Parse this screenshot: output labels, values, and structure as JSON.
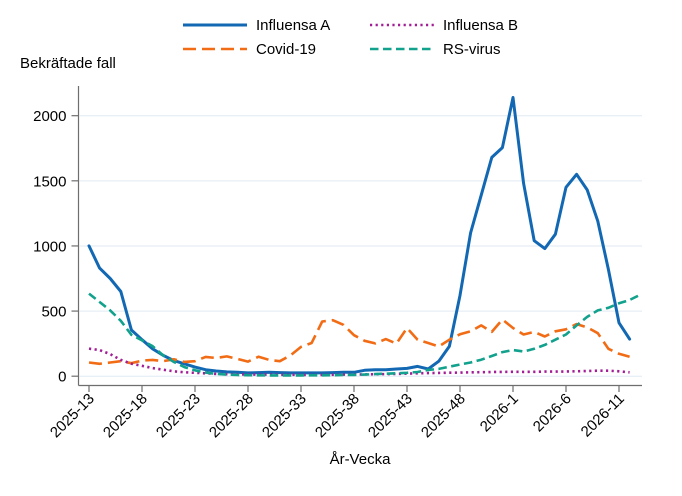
{
  "figure": {
    "y_axis_title": "Bekräftade fall",
    "x_axis_title": "År-Vecka"
  },
  "legend": {
    "position": "top-center",
    "items": [
      "Influensa A",
      "Covid-19",
      "Influensa B",
      "RS-virus"
    ]
  },
  "colors": {
    "influensa_a": "#1268b3",
    "covid_19": "#f26c15",
    "influensa_b": "#a21d96",
    "rs_virus": "#11a18c",
    "gridline": "#e0eaf2",
    "axis": "#6e6e6e",
    "text": "#000000"
  },
  "chart_data": {
    "type": "line",
    "title": "",
    "xlabel": "År-Vecka",
    "ylabel": "Bekräftade fall",
    "ylim": [
      0,
      2200
    ],
    "y_ticks": [
      0,
      500,
      1000,
      1500,
      2000
    ],
    "grid": true,
    "legend_position": "top-center",
    "x_tick_labels": [
      "2025-13",
      "2025-18",
      "2025-23",
      "2025-28",
      "2025-33",
      "2025-38",
      "2025-43",
      "2025-48",
      "2026-1",
      "2026-6",
      "2026-11"
    ],
    "x": [
      "2025-13",
      "2025-14",
      "2025-15",
      "2025-16",
      "2025-17",
      "2025-18",
      "2025-19",
      "2025-20",
      "2025-21",
      "2025-22",
      "2025-23",
      "2025-24",
      "2025-25",
      "2025-26",
      "2025-27",
      "2025-28",
      "2025-29",
      "2025-30",
      "2025-31",
      "2025-32",
      "2025-33",
      "2025-34",
      "2025-35",
      "2025-36",
      "2025-37",
      "2025-38",
      "2025-39",
      "2025-40",
      "2025-41",
      "2025-42",
      "2025-43",
      "2025-44",
      "2025-45",
      "2025-46",
      "2025-47",
      "2025-48",
      "2025-49",
      "2025-50",
      "2025-51",
      "2025-52",
      "2026-1",
      "2026-2",
      "2026-3",
      "2026-4",
      "2026-5",
      "2026-6",
      "2026-7",
      "2026-8",
      "2026-9",
      "2026-10",
      "2026-11",
      "2026-12",
      "2026-13"
    ],
    "series": [
      {
        "name": "Influensa A",
        "color": "#1268b3",
        "dash": "solid",
        "width": 3,
        "values": [
          1000,
          830,
          750,
          650,
          355,
          280,
          210,
          160,
          120,
          95,
          70,
          50,
          40,
          33,
          30,
          25,
          28,
          30,
          28,
          25,
          25,
          25,
          25,
          28,
          30,
          30,
          45,
          50,
          50,
          55,
          60,
          75,
          55,
          115,
          230,
          620,
          1100,
          1390,
          1680,
          1755,
          2140,
          1480,
          1040,
          980,
          1090,
          1450,
          1550,
          1430,
          1190,
          820,
          410,
          285,
          null
        ]
      },
      {
        "name": "Covid-19",
        "color": "#f26c15",
        "dash": "long-dash",
        "width": 2.6,
        "values": [
          105,
          95,
          105,
          115,
          100,
          120,
          125,
          115,
          130,
          110,
          115,
          148,
          140,
          152,
          133,
          112,
          150,
          125,
          115,
          160,
          225,
          255,
          420,
          430,
          395,
          315,
          272,
          252,
          285,
          250,
          370,
          280,
          255,
          228,
          280,
          322,
          345,
          390,
          340,
          435,
          370,
          320,
          340,
          305,
          345,
          360,
          400,
          375,
          330,
          210,
          172,
          150,
          null
        ]
      },
      {
        "name": "Influensa B",
        "color": "#a21d96",
        "dash": "dot",
        "width": 2.6,
        "values": [
          212,
          200,
          170,
          125,
          96,
          80,
          62,
          50,
          38,
          30,
          26,
          22,
          18,
          15,
          14,
          13,
          12,
          12,
          11,
          11,
          10,
          10,
          10,
          11,
          12,
          12,
          14,
          15,
          16,
          18,
          20,
          22,
          24,
          25,
          27,
          28,
          30,
          31,
          32,
          33,
          34,
          33,
          34,
          35,
          35,
          36,
          38,
          40,
          42,
          42,
          38,
          30,
          null
        ]
      },
      {
        "name": "RS-virus",
        "color": "#11a18c",
        "dash": "dash",
        "width": 2.6,
        "values": [
          634,
          570,
          505,
          425,
          318,
          275,
          230,
          160,
          110,
          70,
          45,
          28,
          18,
          12,
          9,
          8,
          7,
          6,
          6,
          6,
          6,
          7,
          7,
          8,
          9,
          10,
          12,
          16,
          19,
          22,
          26,
          32,
          48,
          56,
          73,
          90,
          105,
          127,
          155,
          185,
          200,
          190,
          210,
          240,
          280,
          320,
          390,
          455,
          505,
          525,
          560,
          585,
          625
        ]
      }
    ]
  }
}
